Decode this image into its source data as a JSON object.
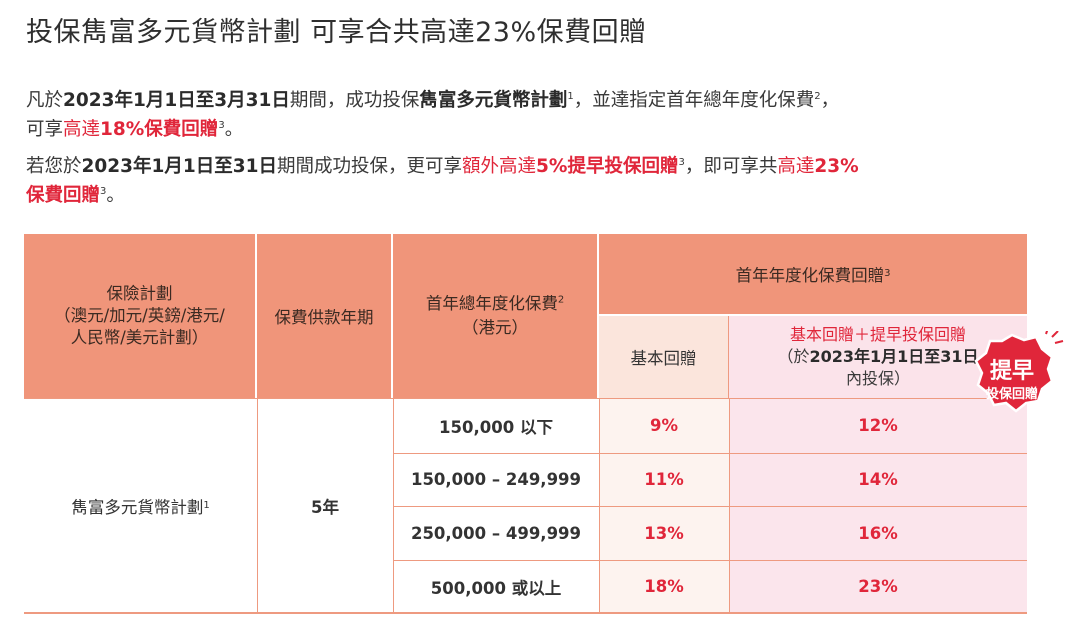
{
  "title": "投保雋富多元貨幣計劃 可享合共高達23%保費回贈",
  "paragraph1": {
    "t1": "凡於",
    "date": "2023年1月1日至3月31日",
    "t2": "期間，成功投保",
    "plan": "雋富多元貨幣計劃",
    "sup1": "1",
    "t3": "，並達指定首年總年度化保費",
    "sup2": "2",
    "t4": "，",
    "t5": "可享",
    "red1": "高達",
    "red2": "18%保費回贈",
    "sup3": "3",
    "t6": "。"
  },
  "paragraph2": {
    "t1": "若您於",
    "date": "2023年1月1日至31日",
    "t2": "期間成功投保，更可享",
    "red1": "額外高達",
    "red2": "5%提早投保回贈",
    "sup1": "3",
    "t3": "，即可享共",
    "red3": "高達",
    "red4": "23%",
    "red5": "保費回贈",
    "sup2": "3",
    "t4": "。"
  },
  "table": {
    "col1_header": "保險計劃\n（澳元/加元/英鎊/港元/\n人民幣/美元計劃）",
    "col2_header": "保費供款年期",
    "col3_header": "首年總年度化保費",
    "col3_sup": "2",
    "col3_unit": "（港元）",
    "col4_header": "首年年度化保費回贈",
    "col4_sup": "3",
    "sub1_header": "基本回贈",
    "sub2_header_red": "基本回贈＋提早投保回贈",
    "sub2_header_paren_open": "（於",
    "sub2_header_date": "2023年1月1日至31日",
    "sub2_header_rest": "內投保）",
    "plan_name": "雋富多元貨幣計劃",
    "plan_sup": "1",
    "term": "5年",
    "rows": [
      {
        "amount": "150,000 以下",
        "basic": "9%",
        "early": "12%"
      },
      {
        "amount": "150,000 – 249,999",
        "basic": "11%",
        "early": "14%"
      },
      {
        "amount": "250,000 – 499,999",
        "basic": "13%",
        "early": "16%"
      },
      {
        "amount": "500,000 或以上",
        "basic": "18%",
        "early": "23%"
      }
    ]
  },
  "badge": {
    "line1": "提早",
    "line2": "投保回贈"
  },
  "colors": {
    "accent_red": "#e0263a",
    "header_salmon": "#f0957a"
  }
}
